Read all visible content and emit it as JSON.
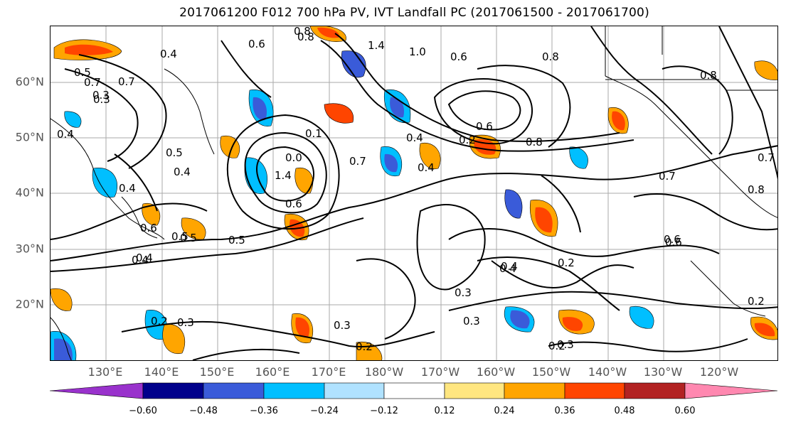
{
  "title": "2017061200 F012 700 hPa PV, IVT Landfall PC (2017061500 - 2017061700)",
  "lat_labels": [
    "60°N",
    "50°N",
    "40°N",
    "30°N",
    "20°N"
  ],
  "lon_labels": [
    "130°E",
    "140°E",
    "150°E",
    "160°E",
    "170°E",
    "180°W",
    "170°W",
    "160°W",
    "150°W",
    "140°W",
    "130°W",
    "120°W"
  ],
  "colorbar": {
    "ticks": [
      "−0.60",
      "−0.48",
      "−0.36",
      "−0.24",
      "−0.12",
      "0.12",
      "0.24",
      "0.36",
      "0.48",
      "0.60"
    ],
    "colors": [
      "#9932cc",
      "#00008b",
      "#3a5bd9",
      "#00bfff",
      "#b0e2ff",
      "#ffffff",
      "#ffe680",
      "#ffa500",
      "#ff4500",
      "#b22222",
      "#ff88b0"
    ]
  },
  "contour_labels": [
    "0.8",
    "0.6",
    "1.4",
    "1.0",
    "0.8",
    "0.6",
    "0.8",
    "0.7",
    "0.4",
    "0.5",
    "0.7",
    "0.3",
    "0.4",
    "0.5",
    "0.4",
    "0.4",
    "0.6",
    "0.5",
    "0.4",
    "0.4",
    "0.1",
    "0.0",
    "1.4",
    "0.7",
    "0.4",
    "0.8",
    "0.7",
    "0.6",
    "0.5",
    "0.5",
    "0.4",
    "0.3",
    "0.6",
    "0.2",
    "0.4",
    "0.3",
    "0.3",
    "0.3",
    "0.2",
    "0.2",
    "0.3",
    "0.2",
    "0.2",
    "0.8",
    "0.7",
    "0.8",
    "0.6",
    "0.2",
    "0.3",
    "0.4",
    "0.6"
  ]
}
